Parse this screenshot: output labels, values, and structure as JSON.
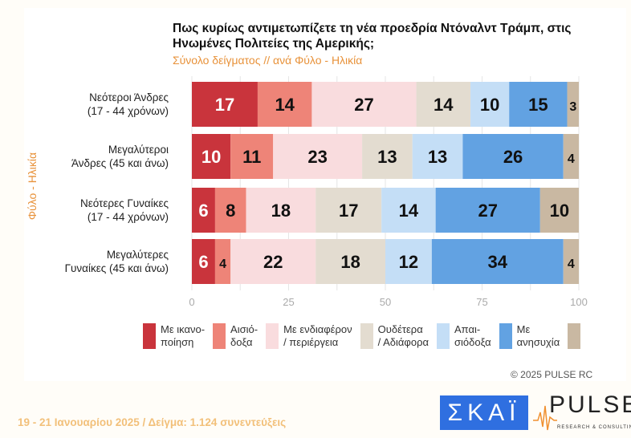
{
  "chart_data": {
    "type": "bar",
    "stacked": true,
    "orientation": "horizontal",
    "title": "Πως κυρίως αντιμετωπίζετε τη νέα προεδρία Ντόναλντ Τράμπ, στις Ηνωμένες Πολιτείες της Αμερικής;",
    "subtitle": "Σύνολο δείγματος // ανά Φύλο - Ηλικία",
    "ylabel": "Φύλο - Ηλικία",
    "xlabel": "",
    "xlim": [
      0,
      100
    ],
    "xticks": [
      "0",
      "25",
      "50",
      "75",
      "100"
    ],
    "grid": true,
    "legend_position": "bottom",
    "categories": [
      "Νεότεροι Άνδρες\n(17 - 44 χρόνων)",
      "Μεγαλύτεροι\nΆνδρες (45 και άνω)",
      "Νεότερες Γυναίκες\n(17 - 44 χρόνων)",
      "Μεγαλύτερες\nΓυναίκες (45 και άνω)"
    ],
    "series": [
      {
        "name": "Με ικανο-\nποίηση",
        "color": "#c9343c",
        "values": [
          17,
          10,
          6,
          6
        ]
      },
      {
        "name": "Αισιό-\nδοξα",
        "color": "#ee8478",
        "values": [
          14,
          11,
          8,
          4
        ]
      },
      {
        "name": "Με ενδιαφέρον\n/ περιέργεια",
        "color": "#f9dcde",
        "values": [
          27,
          23,
          18,
          22
        ]
      },
      {
        "name": "Ουδέτερα\n/ Αδιάφορα",
        "color": "#e3dcd0",
        "values": [
          14,
          13,
          17,
          18
        ]
      },
      {
        "name": "Απαι-\nσιόδοξα",
        "color": "#c4def6",
        "values": [
          10,
          13,
          14,
          12
        ]
      },
      {
        "name": "Με\nανησυχία",
        "color": "#62a2e2",
        "values": [
          15,
          26,
          27,
          34
        ]
      },
      {
        "name": "",
        "color": "#c9b8a2",
        "values": [
          3,
          4,
          10,
          4
        ]
      }
    ]
  },
  "copyright": "© 2025 PULSE RC",
  "footer": "19 - 21 Ιανουαρίου 2025  /  Δείγμα:  1.124 συνεντεύξεις",
  "logos": {
    "skai": "ΣΚΑΪ",
    "pulse": "PULSE",
    "pulse_tagline": "RESEARCH & CONSULTING"
  }
}
